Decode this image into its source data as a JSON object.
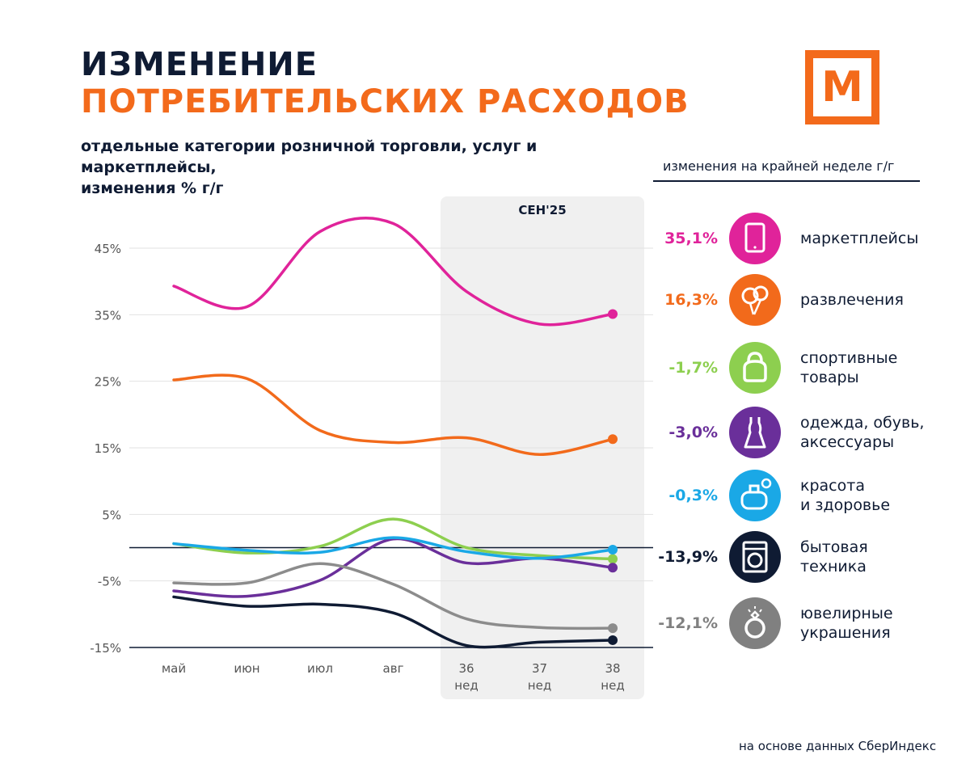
{
  "header": {
    "title_line1": "ИЗМЕНЕНИЕ",
    "title_line2": "ПОТРЕБИТЕЛЬСКИХ РАСХОДОВ",
    "subtitle": "отдельные категории розничной торговли, услуг  и маркетплейсы,\nизменения % г/г",
    "logo_letter": "М"
  },
  "legend": {
    "header": "изменения на крайней неделе г/г",
    "items": [
      {
        "name": "marketplaces",
        "value": "35,1%",
        "label": "маркетплейсы",
        "color": "#e0239a",
        "icon": "tablet-icon"
      },
      {
        "name": "entertainment",
        "value": "16,3%",
        "label": "развлечения",
        "color": "#f26a1b",
        "icon": "balloons-icon"
      },
      {
        "name": "sports",
        "value": "-1,7%",
        "label": "спортивные\nтовары",
        "color": "#8dcf4f",
        "icon": "kettlebell-icon"
      },
      {
        "name": "clothing",
        "value": "-3,0%",
        "label": "одежда, обувь,\nаксессуары",
        "color": "#6a2f9a",
        "icon": "dress-icon"
      },
      {
        "name": "beauty",
        "value": "-0,3%",
        "label": "красота\nи здоровье",
        "color": "#1aa8e6",
        "icon": "perfume-icon"
      },
      {
        "name": "appliances",
        "value": "-13,9%",
        "label": "бытовая\nтехника",
        "color": "#0f1b33",
        "icon": "washing-machine-icon"
      },
      {
        "name": "jewelry",
        "value": "-12,1%",
        "label": "ювелирные\nукрашения",
        "color": "#808080",
        "icon": "ring-icon"
      }
    ]
  },
  "source": "на основе данных СберИндекс",
  "chart_data": {
    "type": "line",
    "highlight_label": "СЕН'25",
    "highlight_range": [
      "36\nнед",
      "38\nнед"
    ],
    "categories": [
      "май",
      "июн",
      "июл",
      "авг",
      "36\nнед",
      "37\nнед",
      "38\nнед"
    ],
    "ylim": [
      -15,
      50
    ],
    "yticks": [
      45,
      35,
      25,
      15,
      5,
      -5,
      -15
    ],
    "ytick_labels": [
      "45%",
      "35%",
      "25%",
      "15%",
      "5%",
      "-5%",
      "-15%"
    ],
    "reference_lines": [
      0,
      -15
    ],
    "series": [
      {
        "name": "маркетплейсы",
        "color": "#e0239a",
        "values": [
          39.3,
          36.2,
          47.5,
          48.7,
          38.5,
          33.6,
          35.1
        ]
      },
      {
        "name": "развлечения",
        "color": "#f26a1b",
        "values": [
          25.2,
          25.4,
          17.6,
          15.8,
          16.5,
          14.0,
          16.3
        ]
      },
      {
        "name": "спортивные товары",
        "color": "#8dcf4f",
        "values": [
          0.6,
          -0.8,
          0.2,
          4.3,
          0.0,
          -1.2,
          -1.7
        ]
      },
      {
        "name": "одежда, обувь, аксессуары",
        "color": "#6a2f9a",
        "values": [
          -6.5,
          -7.3,
          -4.9,
          1.3,
          -2.3,
          -1.6,
          -3.0
        ]
      },
      {
        "name": "красота и здоровье",
        "color": "#1aa8e6",
        "values": [
          0.6,
          -0.4,
          -0.7,
          1.5,
          -0.6,
          -1.6,
          -0.3
        ]
      },
      {
        "name": "бытовая техника",
        "color": "#0f1b33",
        "values": [
          -7.4,
          -8.8,
          -8.5,
          -9.8,
          -14.7,
          -14.2,
          -13.9
        ]
      },
      {
        "name": "ювелирные украшения",
        "color": "#8c8c8c",
        "values": [
          -5.3,
          -5.3,
          -2.4,
          -5.5,
          -10.7,
          -12.0,
          -12.1
        ]
      }
    ]
  }
}
